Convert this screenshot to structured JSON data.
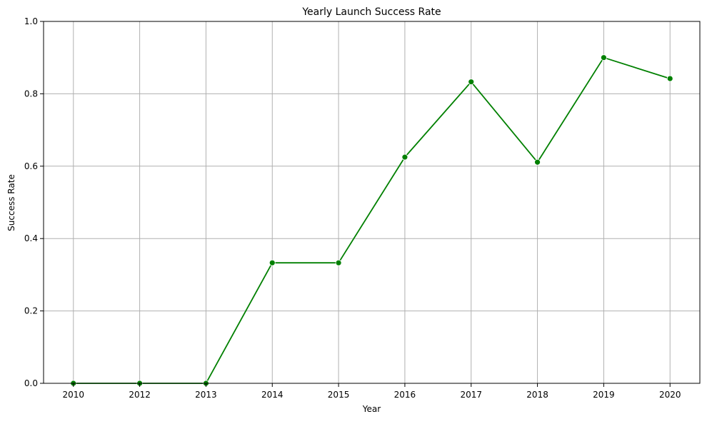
{
  "chart_data": {
    "type": "line",
    "title": "Yearly Launch Success Rate",
    "xlabel": "Year",
    "ylabel": "Success Rate",
    "categories": [
      "2010",
      "2012",
      "2013",
      "2014",
      "2015",
      "2016",
      "2017",
      "2018",
      "2019",
      "2020"
    ],
    "series": [
      {
        "values": [
          0.0,
          0.0,
          0.0,
          0.333,
          0.333,
          0.625,
          0.833,
          0.611,
          0.9,
          0.842
        ],
        "color": "#008000",
        "marker": "circle"
      }
    ],
    "ylim": [
      0,
      1
    ],
    "yticks": [
      0.0,
      0.2,
      0.4,
      0.6,
      0.8,
      1.0
    ],
    "ytick_labels": [
      "0.0",
      "0.2",
      "0.4",
      "0.6",
      "0.8",
      "1.0"
    ],
    "grid": true,
    "legend": false
  }
}
